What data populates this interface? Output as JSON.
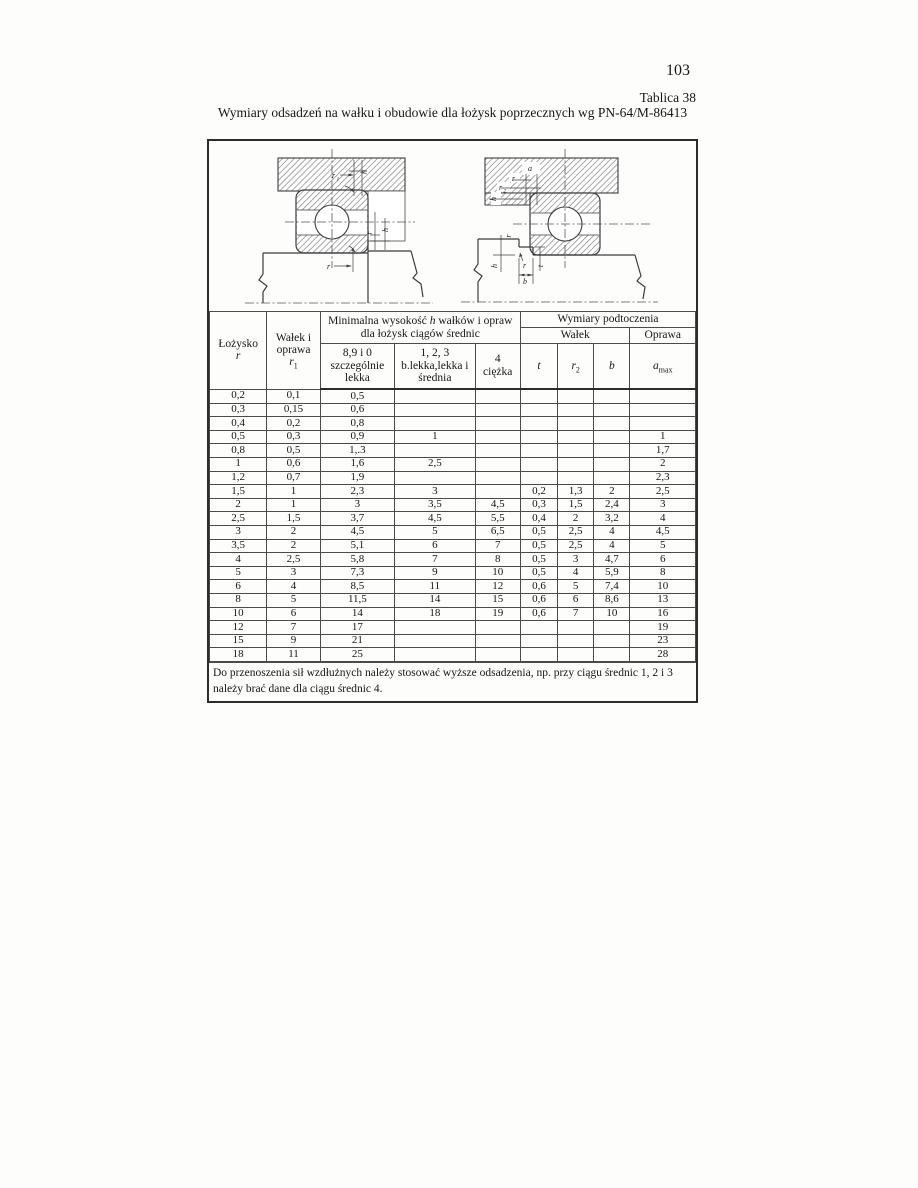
{
  "page": {
    "number": "103",
    "table_label": "Tablica 38",
    "title": "Wymiary odsadzeń na wałku i obudowie dla łożysk poprzecznych wg PN-64/M-86413"
  },
  "figures": {
    "left": {
      "r1_var": "r",
      "r1_sub": "1",
      "h_top": "h",
      "r_right": "r",
      "h_right": "h",
      "r_bottom": "r"
    },
    "right": {
      "a_top": "a",
      "r_top": "r",
      "r2_var": "r",
      "r2_sub": "2",
      "h_left": "h",
      "h_bottom": "h",
      "r_mid": "r",
      "r_groove": "r",
      "t_label": "t",
      "b_label": "b"
    }
  },
  "table": {
    "header": {
      "lozysko": "Łożysko",
      "lozysko_var": "r",
      "walek_l1": "Wałek i",
      "walek_l2": "oprawa",
      "walek_var": "r",
      "walek_var_sub": "1",
      "minh_pre": "Minimalna wysokość ",
      "minh_var": "h",
      "minh_post": " wałków i opraw",
      "minh_l2": "dla łożysk ciągów średnic",
      "podtoczenie": "Wymiary podtoczenia",
      "walek_group": "Wałek",
      "oprawa_group": "Oprawa",
      "sub1_l1": "8,9 i 0",
      "sub1_l2": "szczególnie",
      "sub1_l3": "lekka",
      "sub2_l1": "1, 2, 3",
      "sub2_l2": "b.lekka,lekka i",
      "sub2_l3": "średnia",
      "sub3_l1": "4",
      "sub3_l2": "ciężka",
      "t": "t",
      "r2": "r",
      "r2_sub": "2",
      "b": "b",
      "a": "a",
      "a_sub": "max"
    },
    "rows": [
      [
        "0,2",
        "0,1",
        "0,5",
        "",
        "",
        "",
        "",
        "",
        ""
      ],
      [
        "0,3",
        "0,15",
        "0,6",
        "",
        "",
        "",
        "",
        "",
        ""
      ],
      [
        "0,4",
        "0,2",
        "0,8",
        "",
        "",
        "",
        "",
        "",
        ""
      ],
      [
        "0,5",
        "0,3",
        "0,9",
        "1",
        "",
        "",
        "",
        "",
        "1"
      ],
      [
        "0,8",
        "0,5",
        "1,.3",
        "",
        "",
        "",
        "",
        "",
        "1,7"
      ],
      [
        "1",
        "0,6",
        "1,6",
        "2,5",
        "",
        "",
        "",
        "",
        "2"
      ],
      [
        "1,2",
        "0,7",
        "1,9",
        "",
        "",
        "",
        "",
        "",
        "2,3"
      ],
      [
        "1,5",
        "1",
        "2,3",
        "3",
        "",
        "0,2",
        "1,3",
        "2",
        "2,5"
      ],
      [
        "2",
        "1",
        "3",
        "3,5",
        "4,5",
        "0,3",
        "1,5",
        "2,4",
        "3"
      ],
      [
        "2,5",
        "1,5",
        "3,7",
        "4,5",
        "5,5",
        "0,4",
        "2",
        "3,2",
        "4"
      ],
      [
        "3",
        "2",
        "4,5",
        "5",
        "6,5",
        "0,5",
        "2,5",
        "4",
        "4,5"
      ],
      [
        "3,5",
        "2",
        "5,1",
        "6",
        "7",
        "0,5",
        "2,5",
        "4",
        "5"
      ],
      [
        "4",
        "2,5",
        "5,8",
        "7",
        "8",
        "0,5",
        "3",
        "4,7",
        "6"
      ],
      [
        "5",
        "3",
        "7,3",
        "9",
        "10",
        "0,5",
        "4",
        "5,9",
        "8"
      ],
      [
        "6",
        "4",
        "8,5",
        "11",
        "12",
        "0,6",
        "5",
        "7,4",
        "10"
      ],
      [
        "8",
        "5",
        "11,5",
        "14",
        "15",
        "0,6",
        "6",
        "8,6",
        "13"
      ],
      [
        "10",
        "6",
        "14",
        "18",
        "19",
        "0,6",
        "7",
        "10",
        "16"
      ],
      [
        "12",
        "7",
        "17",
        "",
        "",
        "",
        "",
        "",
        "19"
      ],
      [
        "15",
        "9",
        "21",
        "",
        "",
        "",
        "",
        "",
        "23"
      ],
      [
        "18",
        "11",
        "25",
        "",
        "",
        "",
        "",
        "",
        "28"
      ]
    ],
    "footnote_l1": "Do przenoszenia sił wzdłużnych należy stosować wyższe odsadzenia, np. przy ciągu średnic 1, 2 i 3",
    "footnote_l2": "należy brać dane dla ciągu średnic 4."
  }
}
